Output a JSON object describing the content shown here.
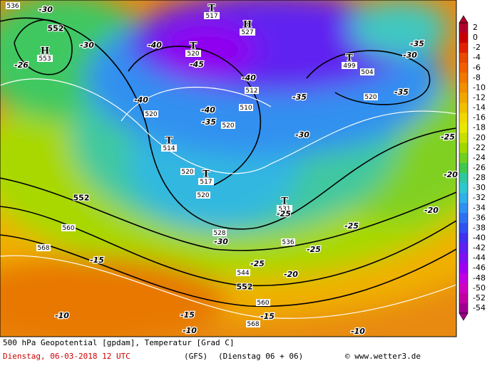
{
  "colorbar": {
    "ticks": [
      2,
      0,
      -2,
      -4,
      -6,
      -8,
      -10,
      -12,
      -14,
      -16,
      -18,
      -20,
      -22,
      -24,
      -26,
      -28,
      -30,
      -32,
      -34,
      -36,
      -38,
      -40,
      -42,
      -44,
      -46,
      -48,
      -50,
      -52,
      -54
    ],
    "colors": [
      "#b0002a",
      "#c80000",
      "#e02000",
      "#e84a00",
      "#f06000",
      "#f07800",
      "#f09000",
      "#f0a800",
      "#f0c000",
      "#f0d800",
      "#e8e800",
      "#c8e000",
      "#a0d800",
      "#70d020",
      "#40c850",
      "#30c8a0",
      "#30c8d0",
      "#30b0e8",
      "#3090f0",
      "#3070f0",
      "#3050f0",
      "#4030f0",
      "#6020f0",
      "#8010f0",
      "#a000f0",
      "#c000e0",
      "#d000c0",
      "#c000a0",
      "#a00090"
    ]
  },
  "pressure_centers": [
    {
      "symbol": "H",
      "value": 553
    },
    {
      "symbol": "T",
      "value": 517
    },
    {
      "symbol": "H",
      "value": 527
    },
    {
      "symbol": "T",
      "value": 520
    },
    {
      "symbol": "T",
      "value": 499
    },
    {
      "symbol": "T",
      "value": 514
    },
    {
      "symbol": "T",
      "value": 517
    },
    {
      "symbol": "T",
      "value": 531
    }
  ],
  "geopotential_labels": [
    552,
    552,
    552,
    560,
    568,
    560,
    568,
    536,
    512,
    510,
    520,
    520,
    520,
    504,
    520,
    520,
    528,
    536,
    544
  ],
  "temperature_labels": [
    -30,
    -30,
    -26,
    -40,
    -45,
    -40,
    -40,
    -35,
    -40,
    -35,
    -30,
    -30,
    -35,
    -35,
    -25,
    -20,
    -30,
    -25,
    -25,
    -25,
    -20,
    -25,
    -20,
    -15,
    -10,
    -15,
    -10,
    -15,
    -10
  ],
  "footer": {
    "title": "500 hPa Geopotential [gpdam], Temperatur [Grad C]",
    "date": "Dienstag, 06-03-2018  12 UTC",
    "model": "(GFS)",
    "run": "(Dienstag 06 + 06)",
    "credit": "© www.wetter3.de"
  }
}
